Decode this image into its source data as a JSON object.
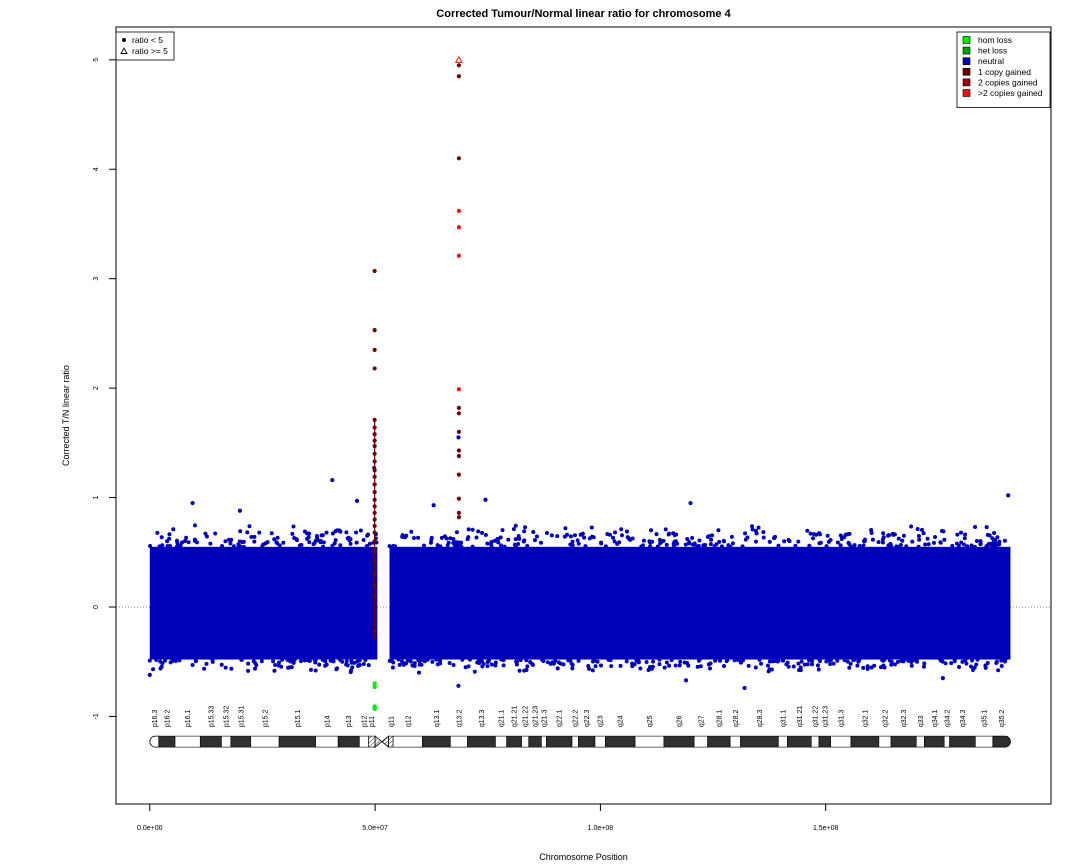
{
  "chart_data": {
    "type": "scatter",
    "title": "Corrected Tumour/Normal linear ratio for chromosome  4",
    "xlabel": "Chromosome Position",
    "ylabel": "Corrected T/N linear ratio",
    "xlim": [
      -7500000,
      200000000
    ],
    "ylim": [
      -1.8,
      5.3
    ],
    "x_ticks": [
      {
        "value": 0,
        "label": "0.0e+00"
      },
      {
        "value": 50000000,
        "label": "5.0e+07"
      },
      {
        "value": 100000000,
        "label": "1.0e+08"
      },
      {
        "value": 150000000,
        "label": "1.5e+08"
      }
    ],
    "y_ticks": [
      -1,
      0,
      1,
      2,
      3,
      4,
      5
    ],
    "reference_line": 0,
    "shape_legend": {
      "placement": "top-left",
      "entries": [
        {
          "symbol": "dot",
          "label": "ratio < 5"
        },
        {
          "symbol": "triangle",
          "label": "ratio >= 5"
        }
      ]
    },
    "color_legend": {
      "placement": "top-right",
      "entries": [
        {
          "label": "hom loss",
          "color": "#00ee00"
        },
        {
          "label": "het loss",
          "color": "#00a000"
        },
        {
          "label": "neutral",
          "color": "#0000bb"
        },
        {
          "label": "1 copy gained",
          "color": "#6e0000"
        },
        {
          "label": "2 copies gained",
          "color": "#a00000"
        },
        {
          "label": ">2 copies gained",
          "color": "#ee1111"
        }
      ]
    },
    "neutral_band": {
      "color": "#0000bb",
      "segments": [
        [
          0,
          50500000
        ],
        [
          53200000,
          191000000
        ]
      ],
      "core_range": [
        -0.48,
        0.55
      ],
      "spread_range": [
        -0.6,
        0.75
      ]
    },
    "neutral_outliers": [
      {
        "x": 9500000,
        "y": 0.95
      },
      {
        "x": 20000000,
        "y": 0.88
      },
      {
        "x": 40500000,
        "y": 1.16
      },
      {
        "x": 46000000,
        "y": 0.97
      },
      {
        "x": 49800000,
        "y": 1.27
      },
      {
        "x": 49900000,
        "y": 1.12
      },
      {
        "x": 63000000,
        "y": 0.93
      },
      {
        "x": 68500000,
        "y": 1.55
      },
      {
        "x": 74500000,
        "y": 0.98
      },
      {
        "x": 120000000,
        "y": 0.95
      },
      {
        "x": 190500000,
        "y": 1.02
      },
      {
        "x": 68500000,
        "y": -0.72
      },
      {
        "x": 0,
        "y": -0.62
      },
      {
        "x": 119000000,
        "y": -0.67
      },
      {
        "x": 132000000,
        "y": -0.74
      },
      {
        "x": 176000000,
        "y": -0.65
      }
    ],
    "gain_points": [
      {
        "x": 49900000,
        "y": 3.07,
        "class": "1 copy gained"
      },
      {
        "x": 49900000,
        "y": 2.53,
        "class": "1 copy gained"
      },
      {
        "x": 49900000,
        "y": 2.35,
        "class": "1 copy gained"
      },
      {
        "x": 49900000,
        "y": 2.18,
        "class": "1 copy gained"
      },
      {
        "x": 49900000,
        "y": 1.71,
        "class": "1 copy gained"
      },
      {
        "x": 49900000,
        "y": 1.64,
        "class": "1 copy gained"
      },
      {
        "x": 49900000,
        "y": 1.58,
        "class": "1 copy gained"
      },
      {
        "x": 49900000,
        "y": 1.52,
        "class": "1 copy gained"
      },
      {
        "x": 49900000,
        "y": 1.47,
        "class": "1 copy gained"
      },
      {
        "x": 49900000,
        "y": 1.4,
        "class": "1 copy gained"
      },
      {
        "x": 49900000,
        "y": 1.33,
        "class": "1 copy gained"
      },
      {
        "x": 49900000,
        "y": 1.25,
        "class": "1 copy gained"
      },
      {
        "x": 49900000,
        "y": 1.19,
        "class": "1 copy gained"
      },
      {
        "x": 49900000,
        "y": 1.12,
        "class": "1 copy gained"
      },
      {
        "x": 49900000,
        "y": 1.05,
        "class": "1 copy gained"
      },
      {
        "x": 49900000,
        "y": 0.98,
        "class": "1 copy gained"
      },
      {
        "x": 49900000,
        "y": 0.92,
        "class": "1 copy gained"
      },
      {
        "x": 49900000,
        "y": 0.86,
        "class": "1 copy gained"
      },
      {
        "x": 49900000,
        "y": 0.8,
        "class": "1 copy gained"
      },
      {
        "x": 49900000,
        "y": 0.74,
        "class": "1 copy gained"
      },
      {
        "x": 49900000,
        "y": 0.68,
        "class": "1 copy gained"
      },
      {
        "x": 49900000,
        "y": 0.6,
        "class": "1 copy gained"
      },
      {
        "x": 49900000,
        "y": 0.5,
        "class": "1 copy gained"
      },
      {
        "x": 49900000,
        "y": 0.4,
        "class": "1 copy gained"
      },
      {
        "x": 49900000,
        "y": 0.3,
        "class": "1 copy gained"
      },
      {
        "x": 49900000,
        "y": 0.2,
        "class": "1 copy gained"
      },
      {
        "x": 49900000,
        "y": 0.1,
        "class": "1 copy gained"
      },
      {
        "x": 49900000,
        "y": -0.22,
        "class": "1 copy gained"
      },
      {
        "x": 68600000,
        "y": 4.95,
        "class": "1 copy gained"
      },
      {
        "x": 68600000,
        "y": 4.85,
        "class": "1 copy gained"
      },
      {
        "x": 68600000,
        "y": 4.1,
        "class": "1 copy gained"
      },
      {
        "x": 68600000,
        "y": 1.82,
        "class": "1 copy gained"
      },
      {
        "x": 68600000,
        "y": 1.77,
        "class": "1 copy gained"
      },
      {
        "x": 68600000,
        "y": 1.6,
        "class": "1 copy gained"
      },
      {
        "x": 68600000,
        "y": 1.43,
        "class": "1 copy gained"
      },
      {
        "x": 68600000,
        "y": 1.38,
        "class": "1 copy gained"
      },
      {
        "x": 68600000,
        "y": 1.21,
        "class": "1 copy gained"
      },
      {
        "x": 68600000,
        "y": 0.99,
        "class": "1 copy gained"
      },
      {
        "x": 68600000,
        "y": 0.86,
        "class": "1 copy gained"
      },
      {
        "x": 68600000,
        "y": 0.82,
        "class": "1 copy gained"
      },
      {
        "x": 68600000,
        "y": 3.62,
        "class": ">2 copies gained"
      },
      {
        "x": 68600000,
        "y": 3.47,
        "class": ">2 copies gained"
      },
      {
        "x": 68600000,
        "y": 3.21,
        "class": ">2 copies gained"
      },
      {
        "x": 68600000,
        "y": 1.99,
        "class": ">2 copies gained"
      }
    ],
    "triangle_points": [
      {
        "x": 68600000,
        "y": 5.0,
        "class": ">2 copies gained"
      }
    ],
    "loss_points": [
      {
        "x": 49900000,
        "y": -0.7,
        "class": "hom loss"
      },
      {
        "x": 49900000,
        "y": -0.73,
        "class": "hom loss"
      },
      {
        "x": 49900000,
        "y": -0.91,
        "class": "hom loss"
      },
      {
        "x": 49900000,
        "y": -0.93,
        "class": "hom loss"
      }
    ],
    "ideogram": {
      "y_center": -1.23,
      "centromere": [
        50000000,
        53000000
      ],
      "bands": [
        {
          "name": "p16.3",
          "start": 0,
          "end": 2000000,
          "stain": "gneg"
        },
        {
          "name": "p16.2",
          "start": 2000000,
          "end": 5600000,
          "stain": "gpos"
        },
        {
          "name": "p16.1",
          "start": 5600000,
          "end": 11200000,
          "stain": "gneg"
        },
        {
          "name": "p15.33",
          "start": 11200000,
          "end": 15900000,
          "stain": "gpos"
        },
        {
          "name": "p15.32",
          "start": 15900000,
          "end": 18000000,
          "stain": "gneg"
        },
        {
          "name": "p15.31",
          "start": 18000000,
          "end": 22400000,
          "stain": "gpos"
        },
        {
          "name": "p15.2",
          "start": 22400000,
          "end": 28700000,
          "stain": "gneg"
        },
        {
          "name": "p15.1",
          "start": 28700000,
          "end": 36800000,
          "stain": "gpos"
        },
        {
          "name": "p14",
          "start": 36800000,
          "end": 41800000,
          "stain": "gneg"
        },
        {
          "name": "p13",
          "start": 41800000,
          "end": 46500000,
          "stain": "gpos"
        },
        {
          "name": "p12",
          "start": 46500000,
          "end": 48500000,
          "stain": "gneg"
        },
        {
          "name": "p11",
          "start": 48500000,
          "end": 50000000,
          "stain": "hatch"
        },
        {
          "name": "q11",
          "start": 53000000,
          "end": 54000000,
          "stain": "hatch"
        },
        {
          "name": "q12",
          "start": 54000000,
          "end": 60500000,
          "stain": "gneg"
        },
        {
          "name": "q13.1",
          "start": 60500000,
          "end": 66700000,
          "stain": "gpos"
        },
        {
          "name": "q13.2",
          "start": 66700000,
          "end": 70500000,
          "stain": "gneg"
        },
        {
          "name": "q13.3",
          "start": 70500000,
          "end": 76700000,
          "stain": "gpos"
        },
        {
          "name": "q21.1",
          "start": 76700000,
          "end": 79200000,
          "stain": "gneg"
        },
        {
          "name": "q21.21",
          "start": 79200000,
          "end": 82500000,
          "stain": "gpos"
        },
        {
          "name": "q21.22",
          "start": 82500000,
          "end": 84100000,
          "stain": "gneg"
        },
        {
          "name": "q21.23",
          "start": 84100000,
          "end": 86900000,
          "stain": "gpos"
        },
        {
          "name": "q21.3",
          "start": 86900000,
          "end": 88000000,
          "stain": "gneg"
        },
        {
          "name": "q22.1",
          "start": 88000000,
          "end": 93700000,
          "stain": "gpos"
        },
        {
          "name": "q22.2",
          "start": 93700000,
          "end": 95100000,
          "stain": "gneg"
        },
        {
          "name": "q22.3",
          "start": 95100000,
          "end": 98800000,
          "stain": "gpos"
        },
        {
          "name": "q23",
          "start": 98800000,
          "end": 101100000,
          "stain": "gneg"
        },
        {
          "name": "q24",
          "start": 101100000,
          "end": 107700000,
          "stain": "gpos"
        },
        {
          "name": "q25",
          "start": 107700000,
          "end": 114100000,
          "stain": "gneg"
        },
        {
          "name": "q26",
          "start": 114100000,
          "end": 120800000,
          "stain": "gpos"
        },
        {
          "name": "q27",
          "start": 120800000,
          "end": 123800000,
          "stain": "gneg"
        },
        {
          "name": "q28.1",
          "start": 123800000,
          "end": 128800000,
          "stain": "gpos"
        },
        {
          "name": "q28.2",
          "start": 128800000,
          "end": 131100000,
          "stain": "gneg"
        },
        {
          "name": "q28.3",
          "start": 131100000,
          "end": 139500000,
          "stain": "gpos"
        },
        {
          "name": "q31.1",
          "start": 139500000,
          "end": 141500000,
          "stain": "gneg"
        },
        {
          "name": "q31.21",
          "start": 141500000,
          "end": 146800000,
          "stain": "gpos"
        },
        {
          "name": "q31.22",
          "start": 146800000,
          "end": 148500000,
          "stain": "gneg"
        },
        {
          "name": "q31.23",
          "start": 148500000,
          "end": 151100000,
          "stain": "gpos"
        },
        {
          "name": "q31.3",
          "start": 151100000,
          "end": 155600000,
          "stain": "gneg"
        },
        {
          "name": "q32.1",
          "start": 155600000,
          "end": 161800000,
          "stain": "gpos"
        },
        {
          "name": "q32.2",
          "start": 161800000,
          "end": 164500000,
          "stain": "gneg"
        },
        {
          "name": "q32.3",
          "start": 164500000,
          "end": 170100000,
          "stain": "gpos"
        },
        {
          "name": "q33",
          "start": 170100000,
          "end": 171900000,
          "stain": "gneg"
        },
        {
          "name": "q34.1",
          "start": 171900000,
          "end": 176300000,
          "stain": "gpos"
        },
        {
          "name": "q34.2",
          "start": 176300000,
          "end": 177500000,
          "stain": "gneg"
        },
        {
          "name": "q34.3",
          "start": 177500000,
          "end": 183200000,
          "stain": "gpos"
        },
        {
          "name": "q35.1",
          "start": 183200000,
          "end": 187100000,
          "stain": "gneg"
        },
        {
          "name": "q35.2",
          "start": 187100000,
          "end": 191000000,
          "stain": "gpos"
        }
      ]
    }
  }
}
